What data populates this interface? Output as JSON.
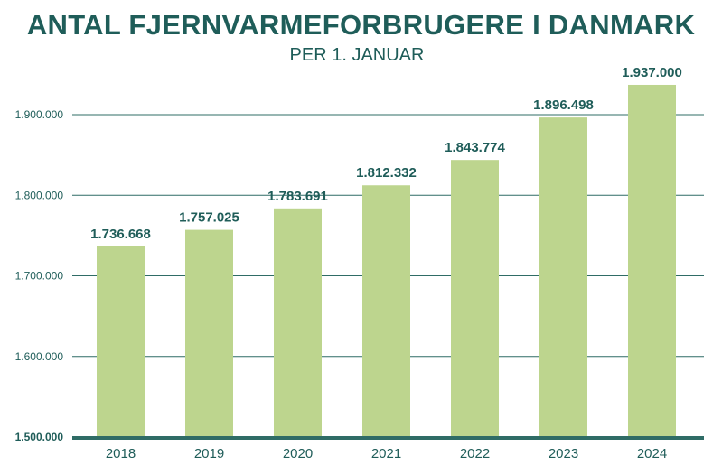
{
  "chart_data": {
    "type": "bar",
    "title": "ANTAL FJERNVARMEFORBRUGERE I DANMARK",
    "subtitle": "PER 1. JANUAR",
    "xlabel": "",
    "ylabel": "",
    "categories": [
      "2018",
      "2019",
      "2020",
      "2021",
      "2022",
      "2023",
      "2024"
    ],
    "values": [
      1736668,
      1757025,
      1783691,
      1812332,
      1843774,
      1896498,
      1937000
    ],
    "value_labels": [
      "1.736.668",
      "1.757.025",
      "1.783.691",
      "1.812.332",
      "1.843.774",
      "1.896.498",
      "1.937.000"
    ],
    "ylim": [
      1500000,
      1950000
    ],
    "yticks": [
      1500000,
      1600000,
      1700000,
      1800000,
      1900000
    ],
    "ytick_labels": [
      "1.500.000",
      "1.600.000",
      "1.700.000",
      "1.800.000",
      "1.900.000"
    ],
    "grid": true,
    "colors": {
      "bar": "#bdd58e",
      "text": "#1f5d59",
      "grid": "#2f6c66"
    }
  }
}
